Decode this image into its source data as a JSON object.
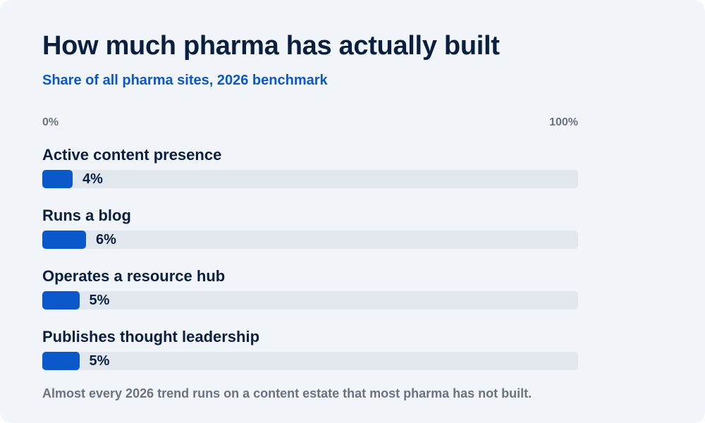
{
  "chart_data": {
    "type": "bar",
    "orientation": "horizontal",
    "title": "How much pharma has actually built",
    "subtitle": "Share of all pharma sites, 2026 benchmark",
    "xlim": [
      0,
      100
    ],
    "scale_labels": {
      "min": "0%",
      "max": "100%"
    },
    "categories": [
      "Active content presence",
      "Runs a blog",
      "Operates a resource hub",
      "Publishes thought leadership"
    ],
    "values": [
      4,
      6,
      5,
      5
    ],
    "value_labels": [
      "4%",
      "6%",
      "5%",
      "5%"
    ],
    "unit": "%",
    "footnote": "Almost every 2026 trend runs on a content estate that most pharma has not built.",
    "colors": {
      "bar": "#0a58ca",
      "track": "#e2e7ee",
      "title": "#0b1f3f",
      "subtitle": "#0a58ca",
      "muted": "#6b7280",
      "background": "#f1f5f9"
    }
  }
}
